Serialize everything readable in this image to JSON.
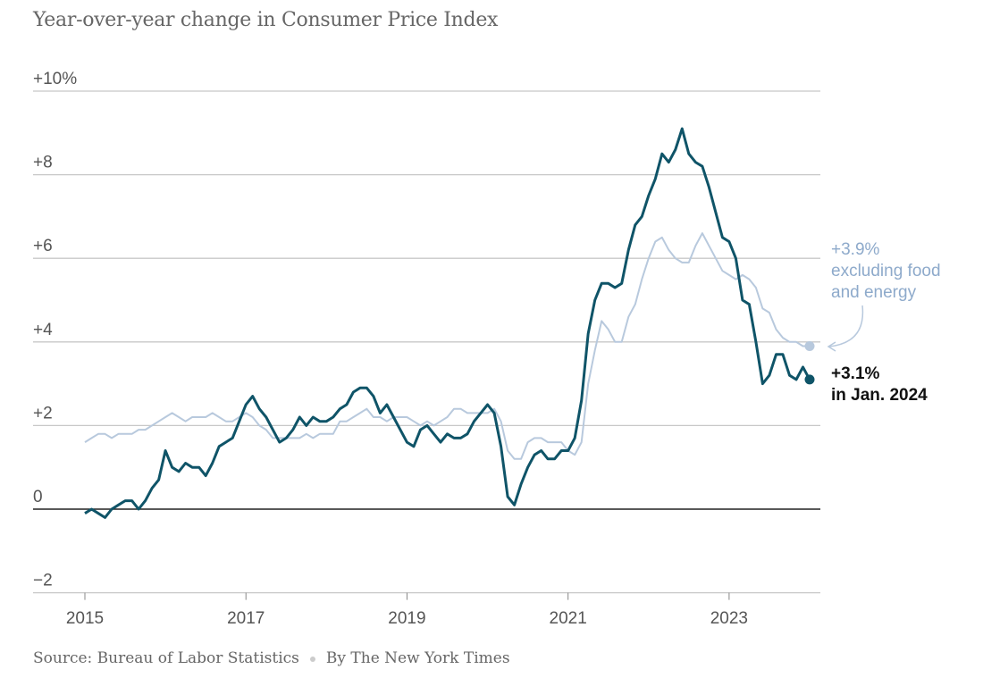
{
  "title": "Year-over-year change in Consumer Price Index",
  "source": "Source: Bureau of Labor Statistics",
  "byline": "By The New York Times",
  "chart_data": {
    "type": "line",
    "x_start": "2015-01",
    "x_end": "2024-01",
    "frequency": "monthly",
    "xticks": [
      "2015",
      "2017",
      "2019",
      "2021",
      "2023"
    ],
    "yticks": [
      {
        "value": 10,
        "label": "+10%"
      },
      {
        "value": 8,
        "label": "+8"
      },
      {
        "value": 6,
        "label": "+6"
      },
      {
        "value": 4,
        "label": "+4"
      },
      {
        "value": 2,
        "label": "+2"
      },
      {
        "value": 0,
        "label": "0"
      },
      {
        "value": -2,
        "label": "−2"
      }
    ],
    "ylim": [
      -2,
      10
    ],
    "grid": true,
    "series": [
      {
        "key": "core",
        "color": "#b8c9dd",
        "values": [
          1.6,
          1.7,
          1.8,
          1.8,
          1.7,
          1.8,
          1.8,
          1.8,
          1.9,
          1.9,
          2.0,
          2.1,
          2.2,
          2.3,
          2.2,
          2.1,
          2.2,
          2.2,
          2.2,
          2.3,
          2.2,
          2.1,
          2.1,
          2.2,
          2.3,
          2.2,
          2.0,
          1.9,
          1.7,
          1.7,
          1.7,
          1.7,
          1.7,
          1.8,
          1.7,
          1.8,
          1.8,
          1.8,
          2.1,
          2.1,
          2.2,
          2.3,
          2.4,
          2.2,
          2.2,
          2.1,
          2.2,
          2.2,
          2.2,
          2.1,
          2.0,
          2.1,
          2.0,
          2.1,
          2.2,
          2.4,
          2.4,
          2.3,
          2.3,
          2.3,
          2.3,
          2.4,
          2.1,
          1.4,
          1.2,
          1.2,
          1.6,
          1.7,
          1.7,
          1.6,
          1.6,
          1.6,
          1.4,
          1.3,
          1.6,
          3.0,
          3.8,
          4.5,
          4.3,
          4.0,
          4.0,
          4.6,
          4.9,
          5.5,
          6.0,
          6.4,
          6.5,
          6.2,
          6.0,
          5.9,
          5.9,
          6.3,
          6.6,
          6.3,
          6.0,
          5.7,
          5.6,
          5.5,
          5.6,
          5.5,
          5.3,
          4.8,
          4.7,
          4.3,
          4.1,
          4.0,
          4.0,
          3.9,
          3.9
        ]
      },
      {
        "key": "headline",
        "color": "#0f5468",
        "values": [
          -0.1,
          0.0,
          -0.1,
          -0.2,
          0.0,
          0.1,
          0.2,
          0.2,
          0.0,
          0.2,
          0.5,
          0.7,
          1.4,
          1.0,
          0.9,
          1.1,
          1.0,
          1.0,
          0.8,
          1.1,
          1.5,
          1.6,
          1.7,
          2.1,
          2.5,
          2.7,
          2.4,
          2.2,
          1.9,
          1.6,
          1.7,
          1.9,
          2.2,
          2.0,
          2.2,
          2.1,
          2.1,
          2.2,
          2.4,
          2.5,
          2.8,
          2.9,
          2.9,
          2.7,
          2.3,
          2.5,
          2.2,
          1.9,
          1.6,
          1.5,
          1.9,
          2.0,
          1.8,
          1.6,
          1.8,
          1.7,
          1.7,
          1.8,
          2.1,
          2.3,
          2.5,
          2.3,
          1.5,
          0.3,
          0.1,
          0.6,
          1.0,
          1.3,
          1.4,
          1.2,
          1.2,
          1.4,
          1.4,
          1.7,
          2.6,
          4.2,
          5.0,
          5.4,
          5.4,
          5.3,
          5.4,
          6.2,
          6.8,
          7.0,
          7.5,
          7.9,
          8.5,
          8.3,
          8.6,
          9.1,
          8.5,
          8.3,
          8.2,
          7.7,
          7.1,
          6.5,
          6.4,
          6.0,
          5.0,
          4.9,
          4.0,
          3.0,
          3.2,
          3.7,
          3.7,
          3.2,
          3.1,
          3.4,
          3.1
        ]
      }
    ],
    "annotations": {
      "core": [
        "+3.9%",
        "excluding food",
        "and energy"
      ],
      "headline": [
        "+3.1%",
        "in Jan. 2024"
      ]
    }
  }
}
